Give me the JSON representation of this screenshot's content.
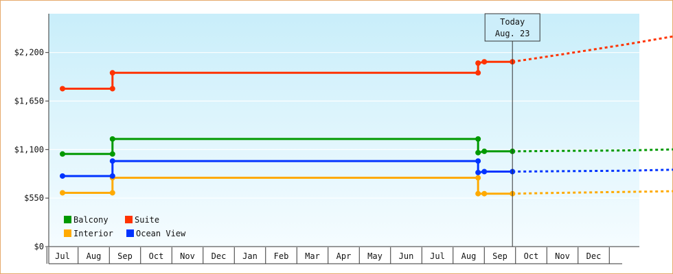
{
  "chart_data": {
    "type": "line",
    "title": "",
    "xlabel": "",
    "ylabel": "",
    "ylim": [
      0,
      2640
    ],
    "yticks": [
      {
        "value": 0,
        "label": "$0"
      },
      {
        "value": 550,
        "label": "$550"
      },
      {
        "value": 1100,
        "label": "$1,100"
      },
      {
        "value": 1650,
        "label": "$1,650"
      },
      {
        "value": 2200,
        "label": "$2,200"
      }
    ],
    "months": [
      "Jul",
      "Aug",
      "Sep",
      "Oct",
      "Nov",
      "Dec",
      "Jan",
      "Feb",
      "Mar",
      "Apr",
      "May",
      "Jun",
      "Jul",
      "Aug",
      "Sep",
      "Oct",
      "Nov",
      "Dec"
    ],
    "today": {
      "line1": "Today",
      "line2": "Aug. 23",
      "month": 14.4
    },
    "legend_position": "bottom-left",
    "series": [
      {
        "name": "Balcony",
        "color": "#009900",
        "points": [
          [
            0,
            1050
          ],
          [
            1.6,
            1050
          ],
          [
            1.6,
            1220
          ],
          [
            13.3,
            1220
          ],
          [
            13.3,
            1065
          ],
          [
            13.5,
            1080
          ],
          [
            14.4,
            1080
          ]
        ],
        "forecast": [
          [
            14.4,
            1080
          ],
          [
            16,
            1085
          ],
          [
            18,
            1090
          ],
          [
            20,
            1105
          ],
          [
            21,
            1110
          ]
        ]
      },
      {
        "name": "Suite",
        "color": "#ff3300",
        "points": [
          [
            0,
            1790
          ],
          [
            1.6,
            1790
          ],
          [
            1.6,
            1970
          ],
          [
            13.3,
            1970
          ],
          [
            13.3,
            2080
          ],
          [
            13.5,
            2095
          ],
          [
            14.4,
            2095
          ]
        ],
        "forecast": [
          [
            14.4,
            2095
          ],
          [
            16,
            2180
          ],
          [
            18,
            2290
          ],
          [
            20,
            2410
          ],
          [
            21,
            2480
          ]
        ]
      },
      {
        "name": "Interior",
        "color": "#ffaa00",
        "points": [
          [
            0,
            610
          ],
          [
            1.6,
            610
          ],
          [
            1.6,
            780
          ],
          [
            13.3,
            780
          ],
          [
            13.3,
            600
          ],
          [
            13.5,
            600
          ],
          [
            14.4,
            600
          ]
        ],
        "forecast": [
          [
            14.4,
            600
          ],
          [
            16,
            610
          ],
          [
            18,
            620
          ],
          [
            20,
            630
          ],
          [
            21,
            635
          ]
        ]
      },
      {
        "name": "Ocean View",
        "color": "#0033ff",
        "points": [
          [
            0,
            800
          ],
          [
            1.6,
            800
          ],
          [
            1.6,
            970
          ],
          [
            13.3,
            970
          ],
          [
            13.3,
            840
          ],
          [
            13.5,
            850
          ],
          [
            14.4,
            850
          ]
        ],
        "forecast": [
          [
            14.4,
            850
          ],
          [
            16,
            855
          ],
          [
            18,
            860
          ],
          [
            20,
            875
          ],
          [
            21,
            880
          ]
        ]
      }
    ]
  }
}
